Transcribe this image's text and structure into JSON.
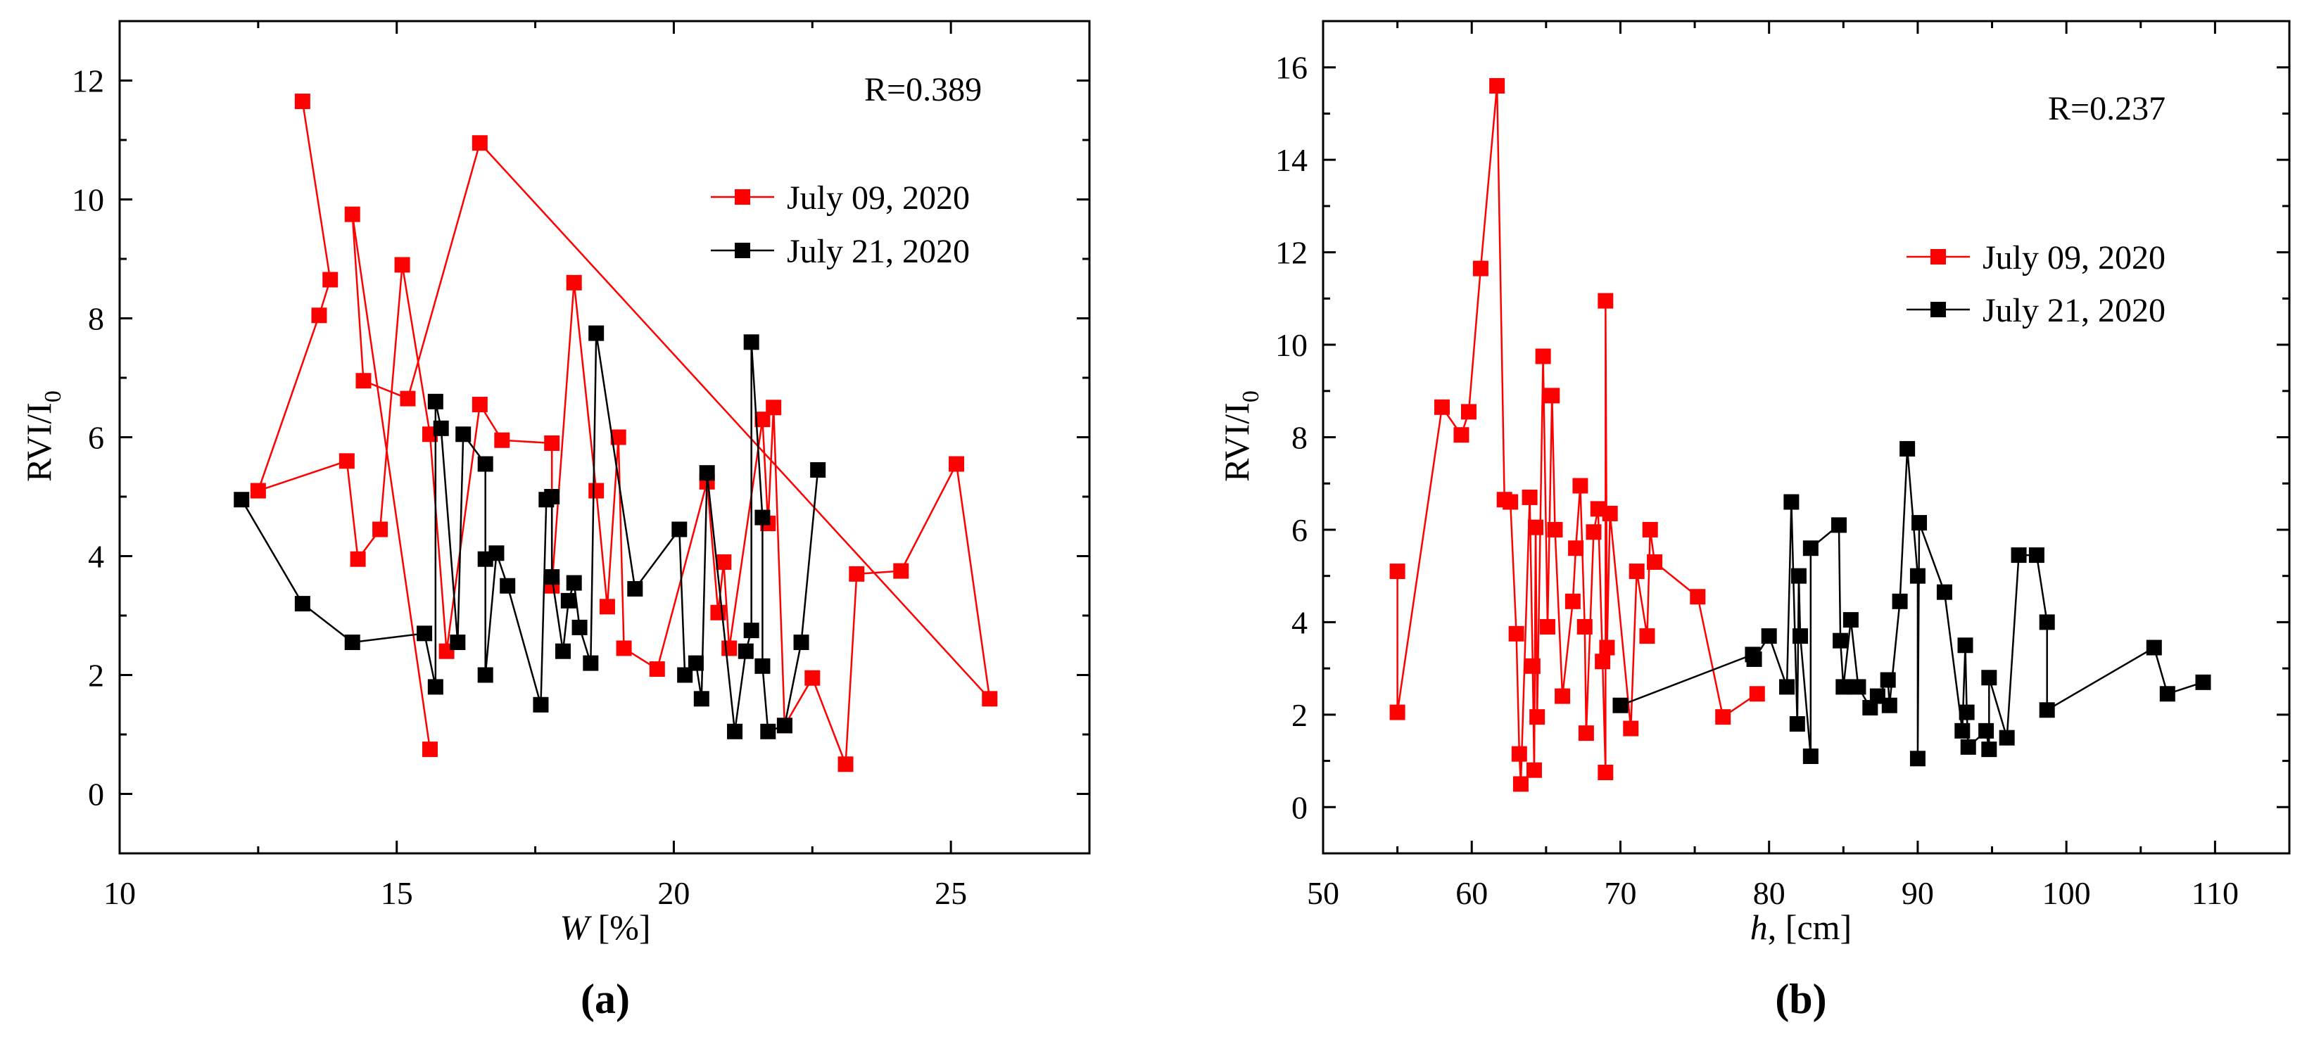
{
  "chart_data": [
    {
      "type": "scatter",
      "panel_label": "(a)",
      "xlabel_var": "W",
      "xlabel_unit": " [%]",
      "ylabel_main": "RVI/I",
      "ylabel_sub": "0",
      "xlim": [
        10,
        27.5
      ],
      "ylim": [
        -1,
        13
      ],
      "xticks": [
        10,
        15,
        20,
        25
      ],
      "yticks": [
        0,
        2,
        4,
        6,
        8,
        10,
        12
      ],
      "annotation": "R=0.389",
      "legend_position": "upper-right",
      "series": [
        {
          "name": "July 09, 2020",
          "color": "#ff0000",
          "x": [
            13.3,
            13.8,
            13.6,
            12.5,
            14.1,
            14.3,
            14.7,
            15.1,
            15.6,
            15.9,
            16.5,
            16.9,
            17.8,
            17.8,
            18.2,
            18.6,
            18.8,
            19.0,
            19.1,
            19.7,
            20.6,
            20.8,
            20.9,
            21.0,
            21.6,
            21.7,
            21.8,
            22.0,
            22.5,
            23.1,
            23.3,
            24.1,
            25.1,
            25.7,
            16.5,
            15.2,
            14.4,
            14.2,
            15.6
          ],
          "y": [
            11.65,
            8.65,
            8.05,
            5.1,
            5.6,
            3.95,
            4.45,
            8.9,
            6.05,
            2.4,
            6.55,
            5.95,
            5.9,
            3.5,
            8.6,
            5.1,
            3.15,
            6.0,
            2.45,
            2.1,
            5.25,
            3.05,
            3.9,
            2.45,
            6.3,
            4.55,
            6.5,
            1.15,
            1.95,
            0.5,
            3.7,
            3.75,
            5.55,
            1.6,
            10.95,
            6.65,
            6.95,
            9.75,
            0.75
          ]
        },
        {
          "name": "July 21, 2020",
          "color": "#000000",
          "x": [
            12.2,
            13.3,
            14.2,
            15.5,
            15.7,
            15.7,
            15.8,
            16.1,
            16.2,
            16.6,
            16.6,
            16.6,
            16.8,
            17.0,
            17.6,
            17.7,
            17.8,
            17.8,
            18.0,
            18.1,
            18.2,
            18.3,
            18.5,
            18.6,
            19.3,
            20.1,
            20.2,
            20.4,
            20.5,
            20.6,
            21.1,
            21.3,
            21.4,
            21.4,
            21.6,
            21.6,
            21.7,
            22.0,
            22.3,
            22.6
          ],
          "y": [
            4.95,
            3.2,
            2.55,
            2.7,
            1.8,
            6.6,
            6.15,
            2.55,
            6.05,
            5.55,
            3.95,
            2.0,
            4.05,
            3.5,
            1.5,
            4.95,
            5.0,
            3.65,
            2.4,
            3.25,
            3.55,
            2.8,
            2.2,
            7.75,
            3.45,
            4.45,
            2.0,
            2.2,
            1.6,
            5.4,
            1.05,
            2.4,
            2.75,
            7.6,
            4.65,
            2.15,
            1.05,
            1.15,
            2.55,
            5.45
          ]
        }
      ]
    },
    {
      "type": "scatter",
      "panel_label": "(b)",
      "xlabel_var": "h",
      "xlabel_unit": ", [cm]",
      "ylabel_main": "RVI/I",
      "ylabel_sub": "0",
      "xlim": [
        50,
        115
      ],
      "ylim": [
        -1,
        17
      ],
      "xticks": [
        50,
        60,
        70,
        80,
        90,
        100,
        110
      ],
      "yticks": [
        0,
        2,
        4,
        6,
        8,
        10,
        12,
        14,
        16
      ],
      "annotation": "R=0.237",
      "legend_position": "upper-right",
      "series": [
        {
          "name": "July 09, 2020",
          "color": "#ff0000",
          "x": [
            55.0,
            55.0,
            58.0,
            59.3,
            59.8,
            60.6,
            61.7,
            62.2,
            62.6,
            63.0,
            63.2,
            63.3,
            63.9,
            64.1,
            64.2,
            64.3,
            64.4,
            64.8,
            65.1,
            65.4,
            65.6,
            66.1,
            66.8,
            67.0,
            67.3,
            67.6,
            67.7,
            68.2,
            68.5,
            68.8,
            69.0,
            69.0,
            69.1,
            69.3,
            70.7,
            71.1,
            71.8,
            72.0,
            72.3,
            75.2,
            76.9,
            79.2
          ],
          "y": [
            5.1,
            2.05,
            8.65,
            8.05,
            8.55,
            11.65,
            15.6,
            6.65,
            6.6,
            3.75,
            1.15,
            0.5,
            6.7,
            3.05,
            0.8,
            6.05,
            1.95,
            9.75,
            3.9,
            8.9,
            6.0,
            2.4,
            4.45,
            5.6,
            6.95,
            3.9,
            1.6,
            5.95,
            6.45,
            3.15,
            0.75,
            10.95,
            3.45,
            6.35,
            1.7,
            5.1,
            3.7,
            6.0,
            5.3,
            4.55,
            1.95,
            2.45
          ]
        },
        {
          "name": "July 21, 2020",
          "color": "#000000",
          "x": [
            70.0,
            78.9,
            79.0,
            80.0,
            81.2,
            81.5,
            81.9,
            82.0,
            82.1,
            82.8,
            82.8,
            84.7,
            84.8,
            85.0,
            85.5,
            86.0,
            86.8,
            87.3,
            88.0,
            88.1,
            88.8,
            89.3,
            90.0,
            90.0,
            90.1,
            91.8,
            93.0,
            93.2,
            93.3,
            93.4,
            94.6,
            94.8,
            94.8,
            96.0,
            96.8,
            98.0,
            98.7,
            98.7,
            105.9,
            106.8,
            109.2
          ],
          "y": [
            2.2,
            3.3,
            3.2,
            3.7,
            2.6,
            6.6,
            1.8,
            5.0,
            3.7,
            1.1,
            5.6,
            6.1,
            3.6,
            2.6,
            4.05,
            2.6,
            2.15,
            2.4,
            2.75,
            2.2,
            4.45,
            7.75,
            5.0,
            1.05,
            6.15,
            4.65,
            1.65,
            3.5,
            2.05,
            1.3,
            1.65,
            1.25,
            2.8,
            1.5,
            5.45,
            5.45,
            4.0,
            2.1,
            3.45,
            2.45,
            2.7
          ]
        }
      ]
    }
  ]
}
